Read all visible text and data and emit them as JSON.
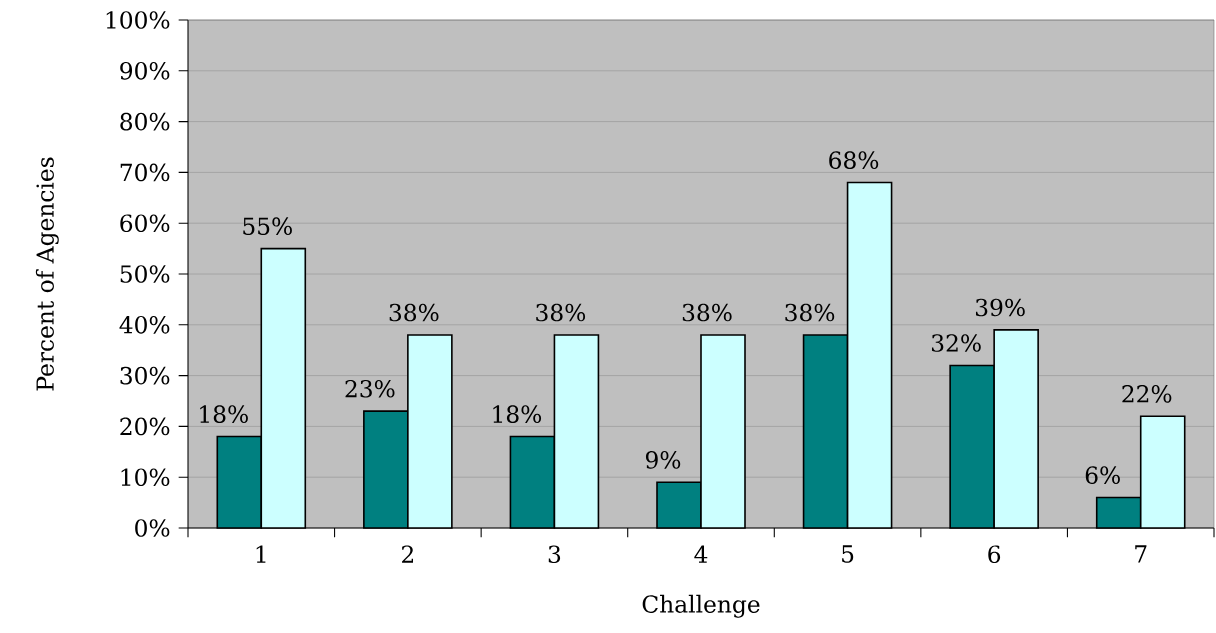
{
  "chart_data": {
    "type": "bar",
    "xlabel": "Challenge",
    "ylabel": "Percent of Agencies",
    "categories": [
      "1",
      "2",
      "3",
      "4",
      "5",
      "6",
      "7"
    ],
    "series": [
      {
        "color": "#008080",
        "values": [
          18,
          23,
          18,
          9,
          38,
          32,
          6
        ],
        "value_labels": [
          "18%",
          "23%",
          "18%",
          "9%",
          "38%",
          "32%",
          "6%"
        ]
      },
      {
        "color": "#ccffff",
        "values": [
          55,
          38,
          38,
          38,
          68,
          39,
          22
        ],
        "value_labels": [
          "55%",
          "38%",
          "38%",
          "38%",
          "68%",
          "39%",
          "22%"
        ]
      }
    ],
    "ylim": [
      0,
      100
    ],
    "yticks": [
      {
        "value": 0,
        "label": "0%"
      },
      {
        "value": 10,
        "label": "10%"
      },
      {
        "value": 20,
        "label": "20%"
      },
      {
        "value": 30,
        "label": "30%"
      },
      {
        "value": 40,
        "label": "40%"
      },
      {
        "value": 50,
        "label": "50%"
      },
      {
        "value": 60,
        "label": "60%"
      },
      {
        "value": 70,
        "label": "70%"
      },
      {
        "value": 80,
        "label": "80%"
      },
      {
        "value": 90,
        "label": "90%"
      },
      {
        "value": 100,
        "label": "100%"
      }
    ],
    "grid": "y"
  }
}
